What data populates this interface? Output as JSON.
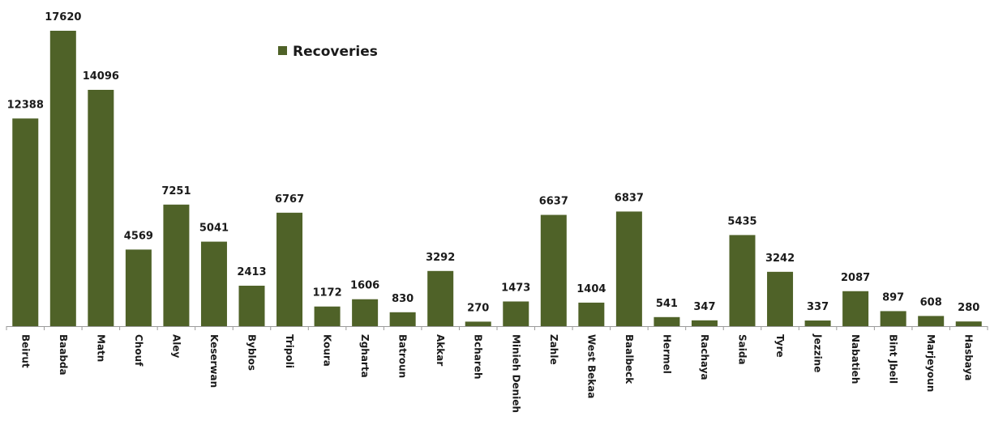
{
  "chart_data": {
    "type": "bar",
    "categories": [
      "Beirut",
      "Baabda",
      "Matn",
      "Chouf",
      "Aley",
      "Keserwan",
      "Byblos",
      "Tripoli",
      "Koura",
      "Zgharta",
      "Batroun",
      "Akkar",
      "Bchareh",
      "Minieh Denieh",
      "Zahle",
      "West Bekaa",
      "Baalbeck",
      "Hermel",
      "Rachaya",
      "Saida",
      "Tyre",
      "Jezzine",
      "Nabatieh",
      "Bint Jbeil",
      "Marjeyoun",
      "Hasbaya"
    ],
    "series": [
      {
        "name": "Recoveries",
        "values": [
          12388,
          17620,
          14096,
          4569,
          7251,
          5041,
          2413,
          6767,
          1172,
          1606,
          830,
          3292,
          270,
          1473,
          6637,
          1404,
          6837,
          541,
          347,
          5435,
          3242,
          337,
          2087,
          897,
          608,
          280
        ]
      }
    ],
    "ylim": [
      0,
      17620
    ],
    "grid": false,
    "legend": "top-center",
    "bar_color": "#4f6228"
  }
}
